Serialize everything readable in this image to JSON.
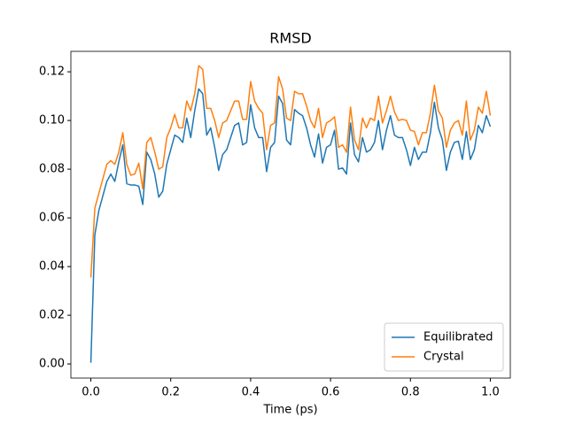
{
  "chart_data": {
    "type": "line",
    "title": "RMSD",
    "x_label": "Time (ps)",
    "x": [
      0.0,
      0.01,
      0.02,
      0.03,
      0.04,
      0.05,
      0.06,
      0.07,
      0.08,
      0.09,
      0.1,
      0.11,
      0.12,
      0.13,
      0.14,
      0.15,
      0.16,
      0.17,
      0.18,
      0.19,
      0.2,
      0.21,
      0.22,
      0.23,
      0.24,
      0.25,
      0.26,
      0.27,
      0.28,
      0.29,
      0.3,
      0.31,
      0.32,
      0.33,
      0.34,
      0.35,
      0.36,
      0.37,
      0.38,
      0.39,
      0.4,
      0.41,
      0.42,
      0.43,
      0.44,
      0.45,
      0.46,
      0.47,
      0.48,
      0.49,
      0.5,
      0.51,
      0.52,
      0.53,
      0.54,
      0.55,
      0.56,
      0.57,
      0.58,
      0.59,
      0.6,
      0.61,
      0.62,
      0.63,
      0.64,
      0.65,
      0.66,
      0.67,
      0.68,
      0.69,
      0.7,
      0.71,
      0.72,
      0.73,
      0.74,
      0.75,
      0.76,
      0.77,
      0.78,
      0.79,
      0.8,
      0.81,
      0.82,
      0.83,
      0.84,
      0.85,
      0.86,
      0.87,
      0.88,
      0.89,
      0.9,
      0.91,
      0.92,
      0.93,
      0.94,
      0.95,
      0.96,
      0.97,
      0.98,
      0.99,
      1.0
    ],
    "series": [
      {
        "name": "Equilibrated",
        "color": "#1f77b4",
        "values": [
          0.0005,
          0.053,
          0.063,
          0.069,
          0.075,
          0.078,
          0.075,
          0.083,
          0.09,
          0.074,
          0.0735,
          0.0735,
          0.073,
          0.0655,
          0.087,
          0.084,
          0.078,
          0.0685,
          0.071,
          0.082,
          0.088,
          0.094,
          0.093,
          0.091,
          0.101,
          0.093,
          0.104,
          0.113,
          0.111,
          0.094,
          0.097,
          0.089,
          0.0795,
          0.086,
          0.088,
          0.093,
          0.098,
          0.099,
          0.09,
          0.091,
          0.1065,
          0.097,
          0.093,
          0.093,
          0.079,
          0.089,
          0.091,
          0.11,
          0.107,
          0.092,
          0.09,
          0.1045,
          0.103,
          0.102,
          0.097,
          0.09,
          0.085,
          0.0945,
          0.0825,
          0.089,
          0.09,
          0.096,
          0.08,
          0.0805,
          0.078,
          0.099,
          0.086,
          0.083,
          0.093,
          0.087,
          0.088,
          0.091,
          0.1,
          0.088,
          0.096,
          0.102,
          0.094,
          0.093,
          0.093,
          0.088,
          0.0815,
          0.089,
          0.084,
          0.087,
          0.087,
          0.095,
          0.1075,
          0.097,
          0.092,
          0.0795,
          0.087,
          0.091,
          0.0915,
          0.084,
          0.0955,
          0.084,
          0.088,
          0.098,
          0.095,
          0.102,
          0.0975
        ]
      },
      {
        "name": "Crystal",
        "color": "#ff7f0e",
        "values": [
          0.0355,
          0.064,
          0.07,
          0.076,
          0.082,
          0.0835,
          0.082,
          0.087,
          0.095,
          0.082,
          0.0775,
          0.078,
          0.0825,
          0.072,
          0.091,
          0.093,
          0.087,
          0.08,
          0.081,
          0.093,
          0.097,
          0.1025,
          0.097,
          0.097,
          0.108,
          0.104,
          0.111,
          0.1225,
          0.121,
          0.105,
          0.105,
          0.1,
          0.093,
          0.099,
          0.1,
          0.104,
          0.108,
          0.108,
          0.1005,
          0.1005,
          0.116,
          0.108,
          0.105,
          0.103,
          0.088,
          0.098,
          0.099,
          0.118,
          0.113,
          0.101,
          0.1,
          0.112,
          0.111,
          0.111,
          0.106,
          0.1,
          0.097,
          0.105,
          0.093,
          0.099,
          0.1,
          0.1015,
          0.089,
          0.09,
          0.087,
          0.1055,
          0.092,
          0.088,
          0.101,
          0.097,
          0.101,
          0.1,
          0.11,
          0.099,
          0.104,
          0.11,
          0.1035,
          0.1,
          0.1005,
          0.1,
          0.096,
          0.0955,
          0.09,
          0.095,
          0.095,
          0.103,
          0.1145,
          0.104,
          0.101,
          0.089,
          0.096,
          0.099,
          0.1,
          0.094,
          0.108,
          0.092,
          0.096,
          0.1055,
          0.103,
          0.112,
          0.102
        ]
      }
    ],
    "xlim": [
      -0.05,
      1.05
    ],
    "xticks": [
      {
        "value": 0.0,
        "label": "0.0"
      },
      0.2,
      0.4,
      0.6,
      0.8,
      {
        "value": 1.0,
        "label": "1.0"
      }
    ],
    "ylim": [
      -0.0058,
      0.1284
    ],
    "yticks": [
      {
        "value": 0.0,
        "label": "0.00"
      },
      0.02,
      0.04,
      0.06,
      0.08,
      {
        "value": 0.1,
        "label": "0.10"
      },
      0.12
    ],
    "grid": false,
    "legend": "lower right"
  }
}
